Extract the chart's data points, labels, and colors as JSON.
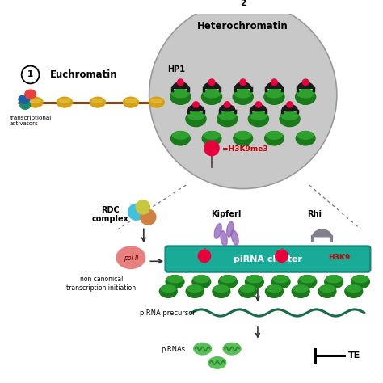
{
  "bg_color": "#ffffff",
  "euchromatin_label": "Euchromatin",
  "heterochromatin_label": "Heterochromatin",
  "hp1_label": "HP1",
  "h3k9me3_label": "=H3K9me3",
  "label1": "1",
  "label2": "2",
  "rdc_label": "RDC\ncomplex",
  "kipferl_label": "Kipferl",
  "rhi_label": "Rhi",
  "pol2_label": "pol II",
  "noncanonical_label": "non canonical\ntranscription initiation",
  "pirna_cluster_label": "piRNA cluster",
  "pirna_precursor_label": "piRNA precursor",
  "pirnas_label": "piRNAs",
  "te_label": "TE",
  "h3k9_red_label": "H3K9",
  "nucleosome_color": "#d4a017",
  "dna_color": "#8B4513",
  "heterochromatin_bg": "#c8c8c8",
  "hp1_color": "#1a1a1a",
  "red_circle": "#e8003d",
  "green_dark": "#1a7a1a",
  "green_mid": "#2da02d",
  "green_light": "#4abf4a",
  "blue_blob": "#1a5fa8",
  "red_blob": "#e84040",
  "teal_blob": "#1a8a6a",
  "pirna_cluster_teal": "#20b0a0",
  "pirna_wave_color": "#1a6a4a",
  "pirna_small_color": "#5abf5a",
  "pol2_color": "#e88080",
  "rdc_cyan": "#40c0e0",
  "rdc_orange": "#d08040",
  "rdc_yellow": "#c8c840",
  "kipferl_purple": "#9060b8",
  "rhi_grey": "#808090",
  "arrow_color": "#333333",
  "red_text": "#cc0000"
}
